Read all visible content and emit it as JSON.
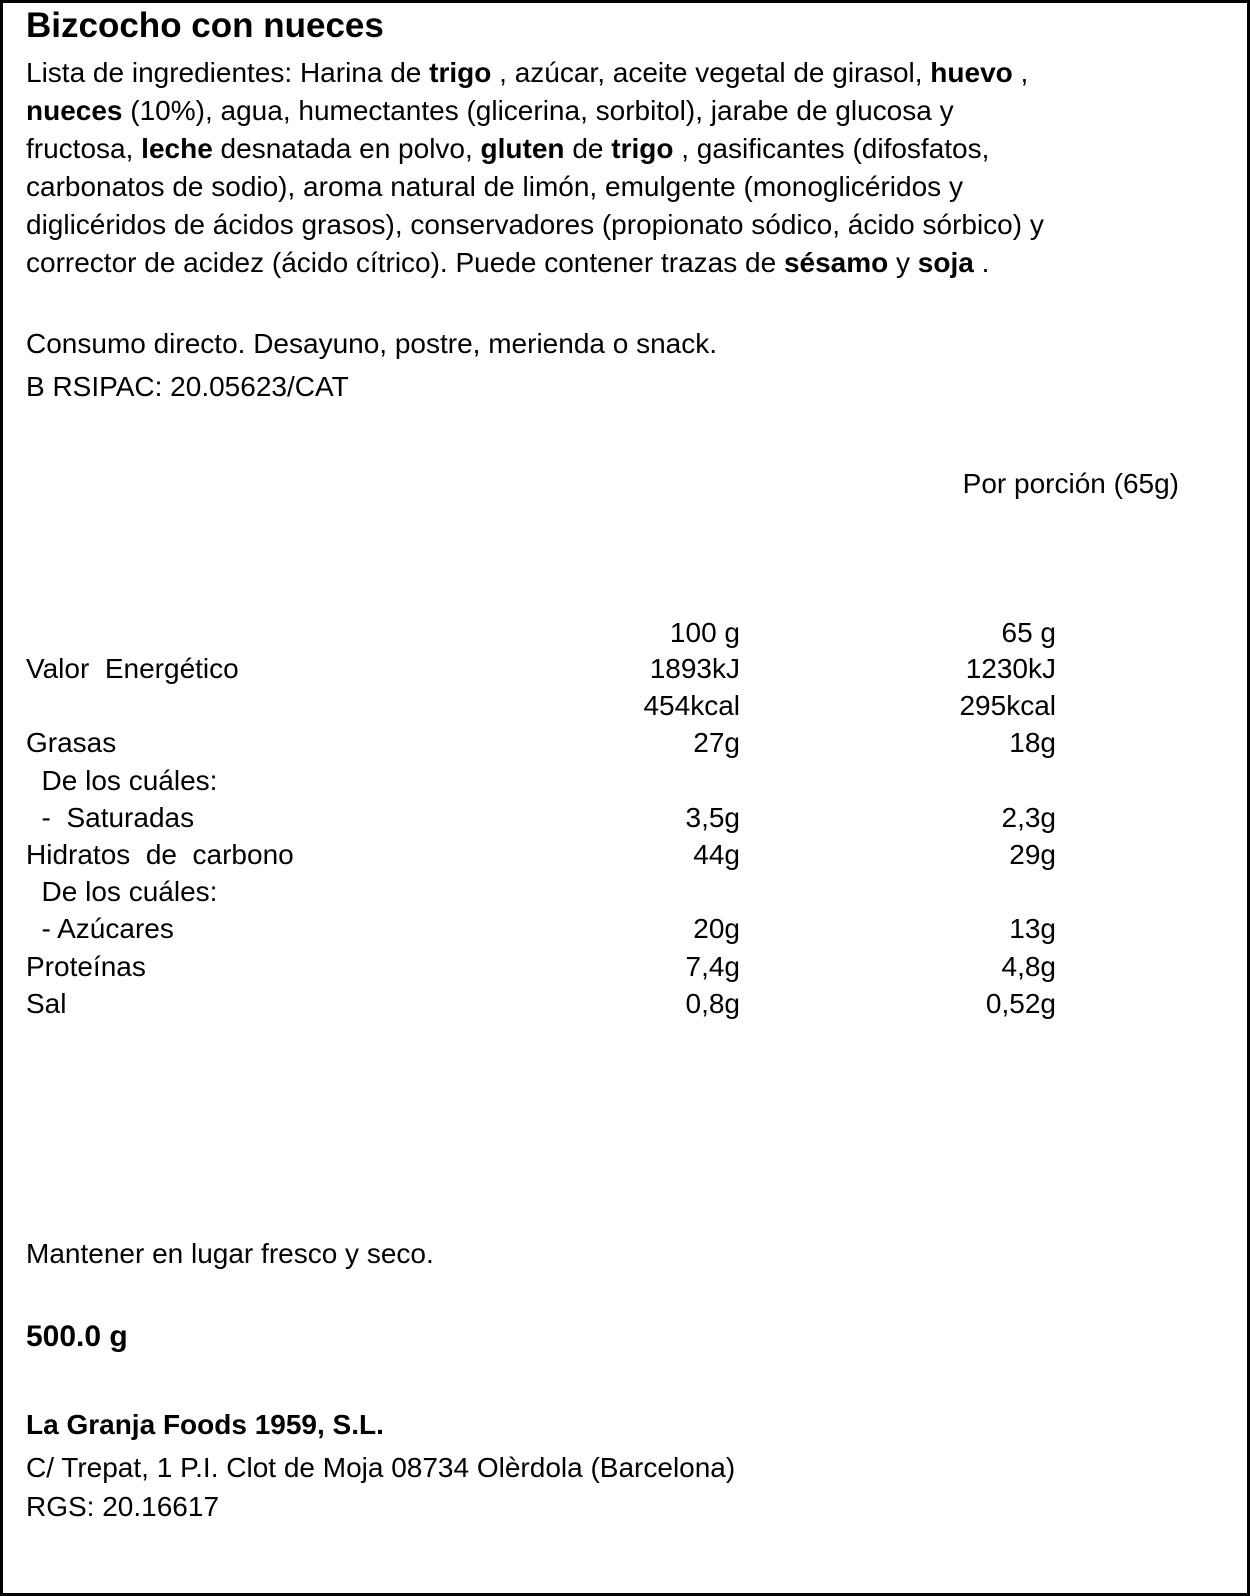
{
  "title": "Bizcocho con nueces",
  "ingredients_lines": [
    [
      {
        "t": "Lista de ingredientes: Harina de ",
        "b": false
      },
      {
        "t": "trigo",
        "b": true
      },
      {
        "t": " , azúcar, aceite vegetal de girasol, ",
        "b": false
      },
      {
        "t": "huevo",
        "b": true
      },
      {
        "t": " ,",
        "b": false
      }
    ],
    [
      {
        "t": "nueces",
        "b": true
      },
      {
        "t": " (10%), agua, humectantes (glicerina, sorbitol), jarabe de glucosa y",
        "b": false
      }
    ],
    [
      {
        "t": "fructosa, ",
        "b": false
      },
      {
        "t": "leche",
        "b": true
      },
      {
        "t": " desnatada en polvo, ",
        "b": false
      },
      {
        "t": "gluten",
        "b": true
      },
      {
        "t": " de ",
        "b": false
      },
      {
        "t": "trigo",
        "b": true
      },
      {
        "t": " , gasificantes (difosfatos,",
        "b": false
      }
    ],
    [
      {
        "t": "carbonatos de sodio), aroma natural de limón, emulgente (monoglicéridos y",
        "b": false
      }
    ],
    [
      {
        "t": "diglicéridos de ácidos grasos), conservadores (propionato sódico, ácido sórbico) y",
        "b": false
      }
    ],
    [
      {
        "t": "corrector de acidez (ácido cítrico). Puede contener trazas de ",
        "b": false
      },
      {
        "t": "sésamo",
        "b": true
      },
      {
        "t": " y ",
        "b": false
      },
      {
        "t": "soja",
        "b": true
      },
      {
        "t": " .",
        "b": false
      }
    ]
  ],
  "usage": "Consumo directo. Desayuno, postre, merienda o snack.",
  "rsipac": "B RSIPAC: 20.05623/CAT",
  "portion_header": "Por porción (65g)",
  "nutrition": {
    "col_headers": [
      "100 g",
      "65 g"
    ],
    "rows": [
      {
        "label": "Valor  Energético",
        "v1": "1893kJ",
        "v2": "1230kJ"
      },
      {
        "label": "",
        "v1": "454kcal",
        "v2": "295kcal"
      },
      {
        "label": "Grasas",
        "v1": "27g",
        "v2": "18g"
      },
      {
        "label": "  De los cuáles:",
        "v1": "",
        "v2": ""
      },
      {
        "label": "  -  Saturadas",
        "v1": "3,5g",
        "v2": "2,3g"
      },
      {
        "label": "Hidratos  de  carbono",
        "v1": "44g",
        "v2": "29g"
      },
      {
        "label": "  De los cuáles:",
        "v1": "",
        "v2": ""
      },
      {
        "label": "  - Azúcares",
        "v1": "20g",
        "v2": "13g"
      },
      {
        "label": "Proteínas",
        "v1": "7,4g",
        "v2": "4,8g"
      },
      {
        "label": "Sal",
        "v1": "0,8g",
        "v2": "0,52g"
      }
    ]
  },
  "storage": "Mantener en lugar fresco y seco.",
  "net_weight": "500.0 g",
  "company": {
    "name": "La Granja Foods 1959, S.L.",
    "address": "C/ Trepat, 1 P.I. Clot de Moja 08734 Olèrdola (Barcelona)",
    "rgs": "RGS: 20.16617"
  }
}
